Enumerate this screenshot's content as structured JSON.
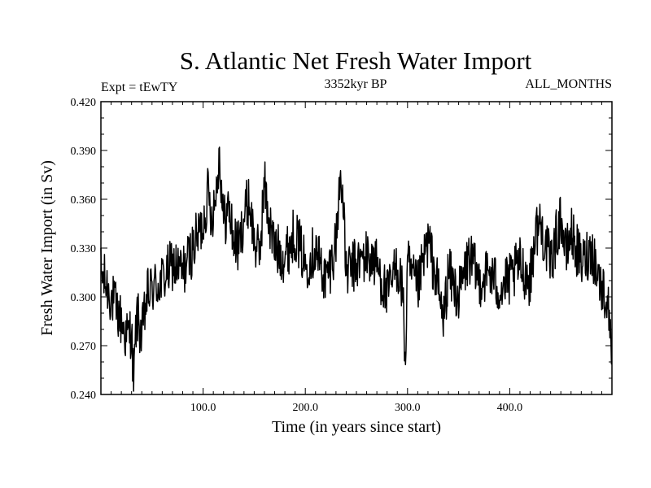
{
  "chart_data": {
    "type": "line",
    "title": "S. Atlantic Net Fresh Water Import",
    "subtitle_left": "Expt = tEwTY",
    "subtitle_center": "3352kyr BP",
    "subtitle_right": "ALL_MONTHS",
    "xlabel": "Time (in years since start)",
    "ylabel": "Fresh Water Import (in Sv)",
    "xlim": [
      0,
      500
    ],
    "ylim": [
      0.24,
      0.42
    ],
    "xticks": [
      100,
      200,
      300,
      400
    ],
    "xtick_labels": [
      "100.0",
      "200.0",
      "300.0",
      "400.0"
    ],
    "yticks": [
      0.24,
      0.27,
      0.3,
      0.33,
      0.36,
      0.39,
      0.42
    ],
    "ytick_labels": [
      "0.240",
      "0.270",
      "0.300",
      "0.330",
      "0.360",
      "0.390",
      "0.420"
    ],
    "line_color": "#000000",
    "series": [
      {
        "name": "Net Fresh Water Import",
        "x": [
          0,
          10,
          20,
          25,
          30,
          32,
          35,
          40,
          45,
          50,
          60,
          70,
          80,
          90,
          100,
          105,
          108,
          112,
          116,
          120,
          125,
          130,
          135,
          140,
          145,
          150,
          155,
          160,
          165,
          170,
          180,
          190,
          200,
          210,
          220,
          225,
          230,
          235,
          240,
          250,
          260,
          270,
          280,
          290,
          295,
          298,
          300,
          305,
          310,
          320,
          330,
          335,
          340,
          350,
          360,
          370,
          380,
          390,
          400,
          410,
          420,
          425,
          430,
          440,
          450,
          455,
          460,
          470,
          480,
          490,
          495,
          500
        ],
        "y": [
          0.315,
          0.3,
          0.285,
          0.275,
          0.28,
          0.245,
          0.29,
          0.275,
          0.3,
          0.305,
          0.31,
          0.32,
          0.315,
          0.33,
          0.345,
          0.365,
          0.35,
          0.36,
          0.39,
          0.345,
          0.355,
          0.335,
          0.33,
          0.35,
          0.36,
          0.335,
          0.325,
          0.37,
          0.345,
          0.33,
          0.325,
          0.34,
          0.32,
          0.33,
          0.31,
          0.32,
          0.335,
          0.38,
          0.315,
          0.32,
          0.325,
          0.32,
          0.3,
          0.32,
          0.305,
          0.258,
          0.32,
          0.31,
          0.305,
          0.335,
          0.305,
          0.285,
          0.315,
          0.3,
          0.325,
          0.31,
          0.315,
          0.305,
          0.31,
          0.32,
          0.31,
          0.34,
          0.345,
          0.32,
          0.35,
          0.325,
          0.34,
          0.32,
          0.33,
          0.305,
          0.3,
          0.27
        ]
      }
    ]
  }
}
